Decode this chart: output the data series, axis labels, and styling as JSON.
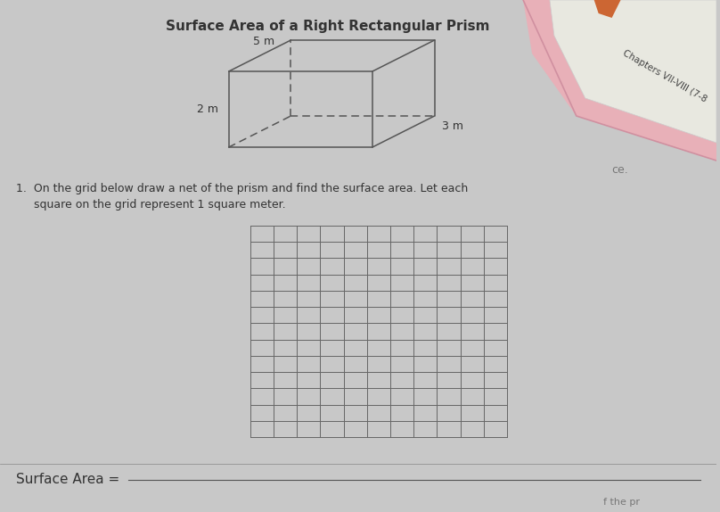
{
  "title": "Surface Area of a Right Rectangular Prism",
  "title_fontsize": 11,
  "background_color": "#c8c8c8",
  "prism_label_width": "5 m",
  "prism_label_height": "2 m",
  "prism_label_depth": "3 m",
  "question_text_line1": "1.  On the grid below draw a net of the prism and find the surface area. Let each",
  "question_text_line2": "     square on the grid represent 1 square meter.",
  "grid_cols": 11,
  "grid_rows": 13,
  "surface_area_label": "Surface Area = ",
  "side_text": "Chapters VII-VIII (7-8",
  "bottom_right_text": "ce.",
  "bottom_text2": "f the pr",
  "line_color": "#555555",
  "text_color": "#333333",
  "grid_color": "#666666",
  "pink_color": "#e8b0b8",
  "pink_dark": "#d090a0"
}
